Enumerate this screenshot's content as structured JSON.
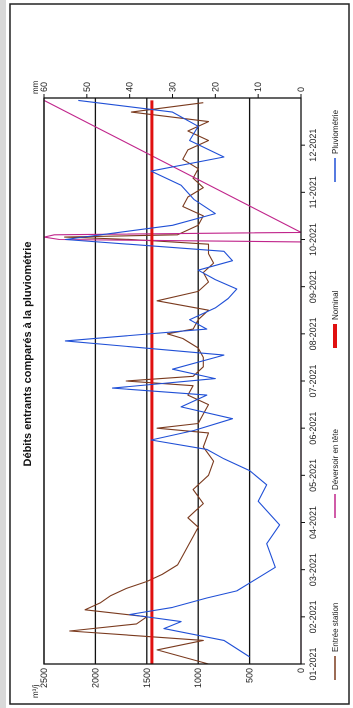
{
  "chart_data": {
    "type": "line",
    "title": "Débits entrants comparés à la pluviométrie",
    "left_axis": {
      "unit": "m³/j",
      "ticks": [
        0,
        500,
        1000,
        1500,
        2000,
        2500
      ],
      "range": [
        0,
        2500
      ]
    },
    "right_axis": {
      "unit": "mm",
      "ticks": [
        0,
        10,
        20,
        30,
        40,
        50,
        60
      ],
      "range": [
        0,
        60
      ]
    },
    "x_axis": {
      "ticks": [
        "01-2021",
        "02-2021",
        "03-2021",
        "04-2021",
        "05-2021",
        "06-2021",
        "07-2021",
        "08-2021",
        "09-2021",
        "10-2021",
        "11-2021",
        "12-2021"
      ]
    },
    "gridlines": [
      500,
      1000,
      1500,
      2000,
      2500
    ],
    "legend_position": "bottom",
    "series": [
      {
        "name": "Entrée station",
        "axis": "left",
        "color": "#7a3a1e",
        "x": [
          0.0,
          0.3,
          0.5,
          0.7,
          0.85,
          1.0,
          1.15,
          1.3,
          1.45,
          1.6,
          1.75,
          1.9,
          2.1,
          2.3,
          2.5,
          2.7,
          2.9,
          3.1,
          3.4,
          3.7,
          4.0,
          4.3,
          4.6,
          4.9,
          5.0,
          5.1,
          5.3,
          5.5,
          5.7,
          5.9,
          6.0,
          6.1,
          6.3,
          6.5,
          6.7,
          6.9,
          7.0,
          7.1,
          7.3,
          7.5,
          7.7,
          7.9,
          8.1,
          8.3,
          8.5,
          8.7,
          8.9,
          9.0,
          9.05,
          9.1,
          9.3,
          9.5,
          9.7,
          9.9,
          10.1,
          10.3,
          10.5,
          10.7,
          10.9,
          11.1,
          11.3,
          11.5,
          11.7,
          11.9
        ],
        "values": [
          900,
          1400,
          950,
          2250,
          1600,
          1500,
          2100,
          1950,
          1850,
          1700,
          1500,
          1350,
          1200,
          1150,
          1100,
          1050,
          1000,
          1100,
          950,
          1050,
          900,
          850,
          950,
          900,
          1400,
          1000,
          950,
          900,
          1100,
          1050,
          1700,
          1050,
          950,
          950,
          1000,
          1150,
          1300,
          1050,
          1000,
          900,
          1400,
          1000,
          900,
          950,
          850,
          900,
          900,
          1650,
          2300,
          1200,
          1000,
          950,
          1150,
          1100,
          950,
          1050,
          1000,
          1150,
          1100,
          900,
          1100,
          900,
          1650,
          950
        ]
      },
      {
        "name": "Déversoir en tête",
        "axis": "left",
        "color": "#c0258b",
        "x": [
          0.0,
          8.95,
          9.0,
          9.05,
          9.1,
          9.15,
          11.95
        ],
        "values": [
          0,
          0,
          2350,
          2500,
          2400,
          0,
          2500
        ]
      },
      {
        "name": "Nominal",
        "axis": "left",
        "color": "#e01010",
        "x": [
          0.0,
          11.95
        ],
        "values": [
          1450,
          1450
        ]
      },
      {
        "name": "Pluviométrie",
        "axis": "right",
        "color": "#1f4fd6",
        "x": [
          0.15,
          0.5,
          0.75,
          0.9,
          1.05,
          1.2,
          1.4,
          1.55,
          2.05,
          2.55,
          2.95,
          3.45,
          3.8,
          4.1,
          4.35,
          4.55,
          4.75,
          4.95,
          5.2,
          5.45,
          5.7,
          5.85,
          6.05,
          6.25,
          6.55,
          6.85,
          7.1,
          7.3,
          7.55,
          7.75,
          7.95,
          8.15,
          8.35,
          8.55,
          8.75,
          9.0,
          9.3,
          9.55,
          9.85,
          10.15,
          10.45,
          10.75,
          11.1,
          11.4,
          11.7,
          11.95
        ],
        "values": [
          12,
          18,
          32,
          28,
          40,
          30,
          22,
          15,
          6,
          8,
          5,
          10,
          8,
          12,
          18,
          22,
          35,
          25,
          16,
          28,
          22,
          44,
          20,
          30,
          18,
          55,
          22,
          26,
          20,
          17,
          15,
          20,
          24,
          16,
          18,
          55,
          30,
          20,
          25,
          28,
          35,
          18,
          26,
          24,
          30,
          52
        ]
      }
    ]
  }
}
